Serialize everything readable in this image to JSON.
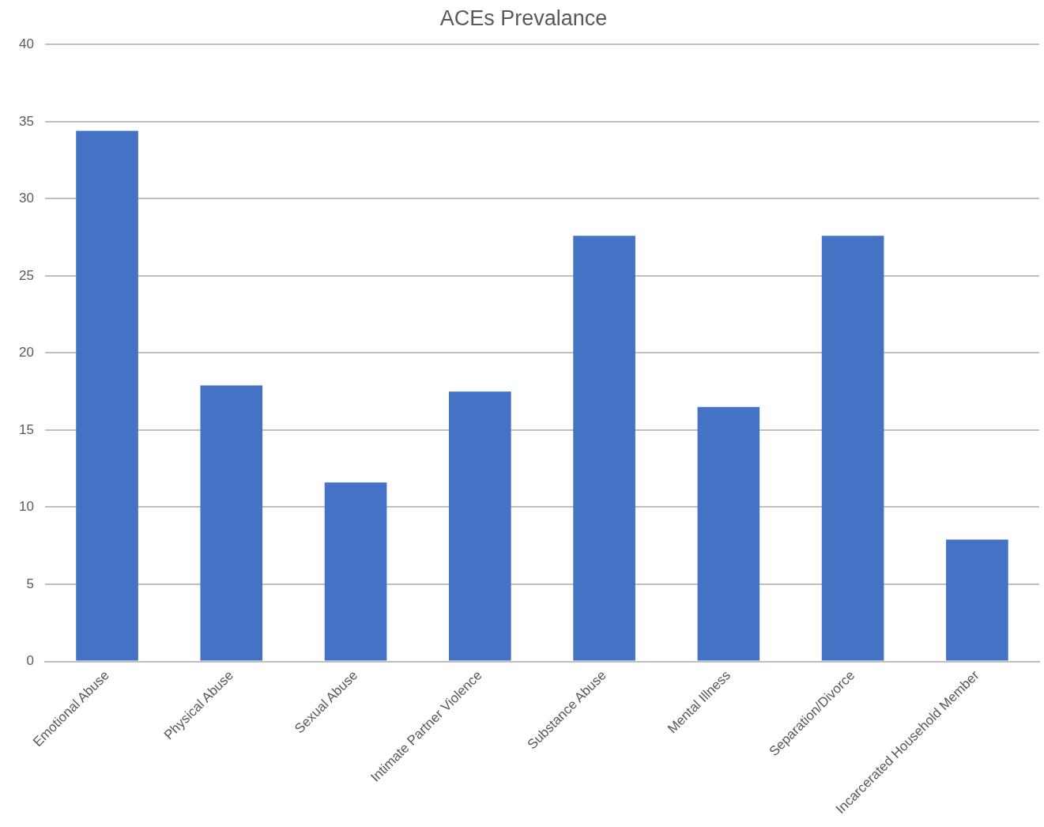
{
  "chart_data": {
    "type": "bar",
    "title": "ACEs Prevalance",
    "categories": [
      "Emotional Abuse",
      "Physical Abuse",
      "Sexual Abuse",
      "Intimate Partner Violence",
      "Substance Abuse",
      "Mental Illness",
      "Separation/Divorce",
      "Incarcerated Household Member"
    ],
    "values": [
      34.4,
      17.9,
      11.6,
      17.5,
      27.6,
      16.5,
      27.6,
      7.9
    ],
    "color": "#4472c4",
    "ylim": [
      0,
      40
    ],
    "yticks": [
      0,
      5,
      10,
      15,
      20,
      25,
      30,
      35,
      40
    ],
    "grid": "y",
    "legend": false
  }
}
